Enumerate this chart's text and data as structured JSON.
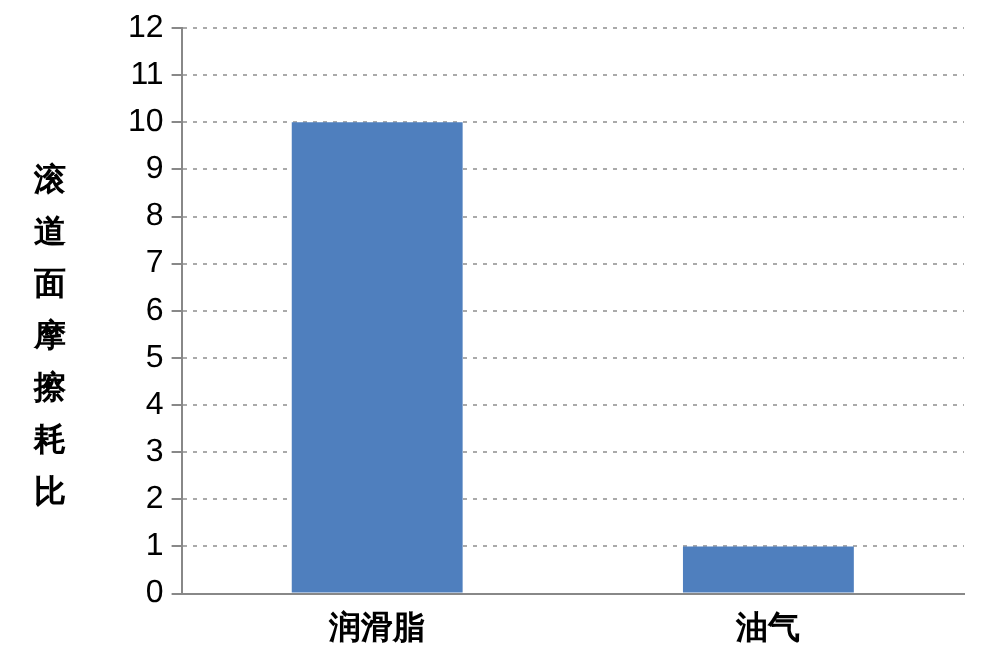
{
  "chart_data": {
    "type": "bar",
    "ylabel": "滚道面摩擦耗比",
    "categories": [
      "润滑脂",
      "油气"
    ],
    "values": [
      10,
      1
    ],
    "color": "#4f7fbe",
    "ylim": [
      0,
      12
    ],
    "yticks": [
      0,
      1,
      2,
      3,
      4,
      5,
      6,
      7,
      8,
      9,
      10,
      11,
      12
    ],
    "grid": "y",
    "legend": false
  }
}
